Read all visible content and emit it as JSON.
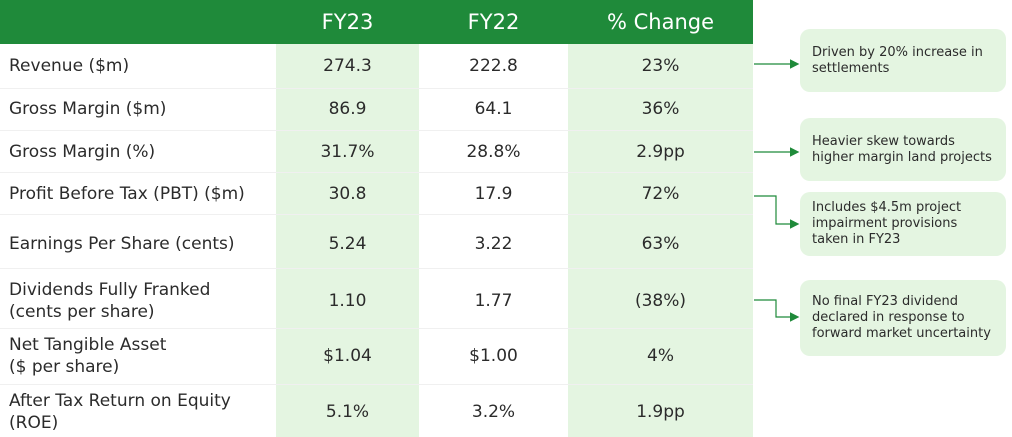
{
  "header": {
    "col1": "FY23",
    "col2": "FY22",
    "col3": "% Change"
  },
  "rows": [
    {
      "label_lines": [
        "Revenue ($m)"
      ],
      "fy23": "274.3",
      "fy22": "222.8",
      "change": "23%"
    },
    {
      "label_lines": [
        "Gross Margin ($m)"
      ],
      "fy23": "86.9",
      "fy22": "64.1",
      "change": "36%"
    },
    {
      "label_lines": [
        "Gross Margin (%)"
      ],
      "fy23": "31.7%",
      "fy22": "28.8%",
      "change": "2.9pp"
    },
    {
      "label_lines": [
        "Profit Before Tax (PBT) ($m)"
      ],
      "fy23": "30.8",
      "fy22": "17.9",
      "change": "72%"
    },
    {
      "label_lines": [
        "Earnings Per Share (cents)"
      ],
      "fy23": "5.24",
      "fy22": "3.22",
      "change": "63%"
    },
    {
      "label_lines": [
        "Dividends Fully Franked",
        "(cents per share)"
      ],
      "fy23": "1.10",
      "fy22": "1.77",
      "change": "(38%)"
    },
    {
      "label_lines": [
        "Net Tangible Asset",
        "($ per share)"
      ],
      "fy23": "$1.04",
      "fy22": "$1.00",
      "change": "4%"
    },
    {
      "label_lines": [
        "After Tax Return on Equity",
        "(ROE)"
      ],
      "fy23": "5.1%",
      "fy22": "3.2%",
      "change": "1.9pp"
    }
  ],
  "notes": [
    {
      "lines": [
        "Driven by 20% increase in",
        "settlements"
      ]
    },
    {
      "lines": [
        "Heavier skew towards",
        "higher margin land projects"
      ]
    },
    {
      "lines": [
        "Includes $4.5m project",
        "impairment provisions",
        "taken in FY23"
      ]
    },
    {
      "lines": [
        "No final FY23 dividend",
        "declared in response to",
        "forward market uncertainty"
      ]
    }
  ],
  "colors": {
    "header": "#1f8a3a",
    "highlight": "#e4f5e1",
    "connector": "#1f8a3a"
  }
}
